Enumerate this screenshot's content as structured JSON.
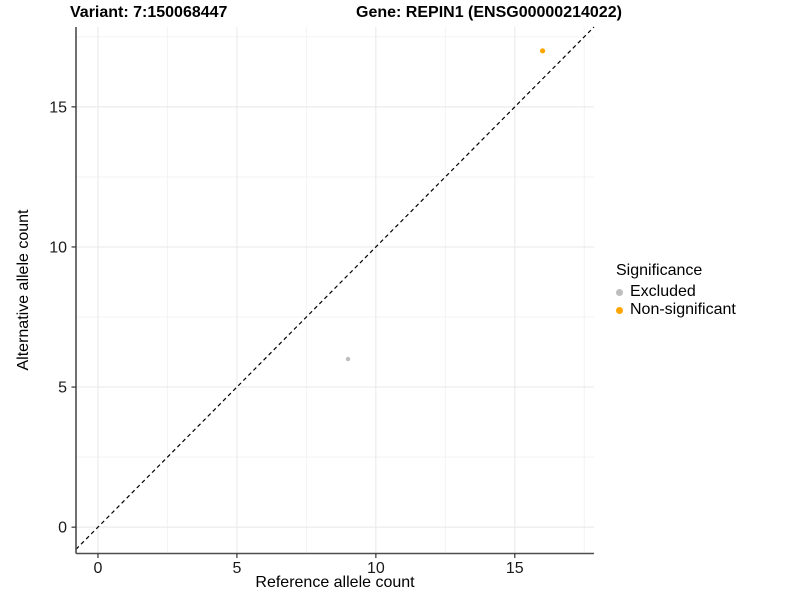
{
  "titles": {
    "variant": "Variant: 7:150068447",
    "gene": "Gene: REPIN1 (ENSG00000214022)"
  },
  "axes": {
    "x_label": "Reference allele count",
    "y_label": "Alternative allele count"
  },
  "legend": {
    "title": "Significance",
    "items": [
      {
        "label": "Excluded",
        "color": "#BEBEBE"
      },
      {
        "label": "Non-significant",
        "color": "#FFA500"
      }
    ]
  },
  "chart_data": {
    "type": "scatter",
    "title": "Variant: 7:150068447   Gene: REPIN1 (ENSG00000214022)",
    "xlabel": "Reference allele count",
    "ylabel": "Alternative allele count",
    "xlim": [
      -0.79,
      17.85
    ],
    "ylim": [
      -0.94,
      17.85
    ],
    "x_ticks": [
      0,
      5,
      10,
      15
    ],
    "y_ticks": [
      0,
      5,
      10,
      15
    ],
    "x_minor_ticks": [
      2.5,
      7.5,
      12.5,
      17.5
    ],
    "y_minor_ticks": [
      2.5,
      7.5,
      12.5,
      17.5
    ],
    "grid": true,
    "legend_position": "right",
    "abline": {
      "slope": 1,
      "intercept": 0,
      "dashed": true,
      "color": "#000000"
    },
    "series": [
      {
        "name": "Excluded",
        "color": "#BEBEBE",
        "points": [
          {
            "x": 9,
            "y": 6,
            "r": 2.2
          }
        ]
      },
      {
        "name": "Non-significant",
        "color": "#FFA500",
        "points": [
          {
            "x": 16,
            "y": 17,
            "r": 2.6
          }
        ]
      }
    ],
    "colors": {
      "major_grid": "#e8e8e8",
      "minor_grid": "#f3f3f3",
      "axis_line": "#4d4d4d",
      "tick_mark": "#333333",
      "tick_label": "#1a1a1a"
    }
  }
}
